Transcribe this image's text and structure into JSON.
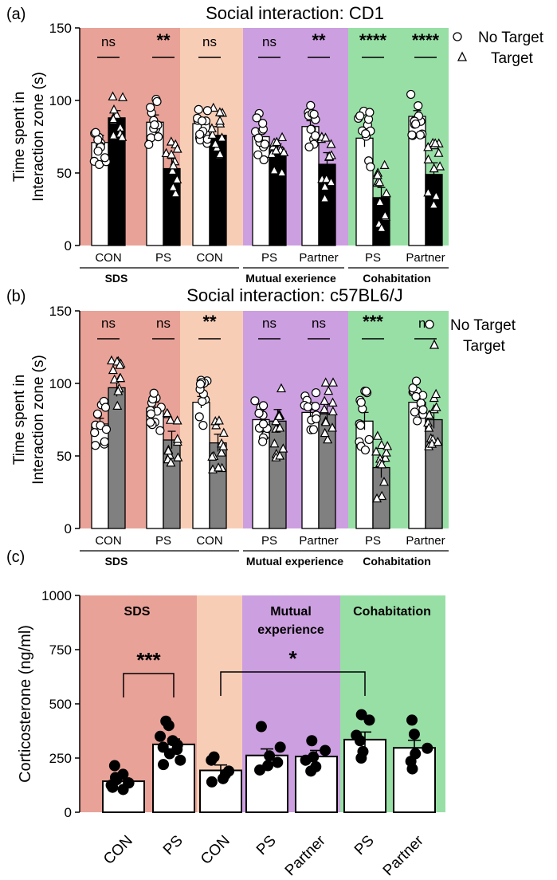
{
  "chart_data": [
    {
      "type": "bar",
      "panel": "(a)",
      "title": "Social interaction: CD1",
      "ylabel_line1": "Time spent in",
      "ylabel_line2": "Interaction zone (s)",
      "ylim": [
        0,
        150
      ],
      "yticks": [
        "0",
        "50",
        "100",
        "150"
      ],
      "legend": {
        "no_target": "No Target",
        "target": "Target"
      },
      "colors": {
        "sds": "#e9a298",
        "con": "#f8cdb6",
        "mutual": "#cc9fe0",
        "cohab": "#98dfa6",
        "target_bar": "#000000"
      },
      "groups": [
        {
          "label": "CON",
          "no_target": 71,
          "target": 88,
          "no_target_err": 5,
          "target_err": 5,
          "sig": "ns"
        },
        {
          "label": "PS",
          "no_target": 85,
          "target": 53,
          "no_target_err": 5,
          "target_err": 7,
          "sig": "**"
        },
        {
          "label": "CON",
          "no_target": 84,
          "target": 76,
          "no_target_err": 4,
          "target_err": 6,
          "sig": "ns"
        },
        {
          "label": "PS",
          "no_target": 75,
          "target": 65,
          "no_target_err": 4,
          "target_err": 5,
          "sig": "ns"
        },
        {
          "label": "Partner",
          "no_target": 82,
          "target": 56,
          "no_target_err": 4,
          "target_err": 8,
          "sig": "**"
        },
        {
          "label": "PS",
          "no_target": 74,
          "target": 33,
          "no_target_err": 6,
          "target_err": 7,
          "sig": "****"
        },
        {
          "label": "Partner",
          "no_target": 89,
          "target": 49,
          "no_target_err": 4,
          "target_err": 8,
          "sig": "****"
        }
      ],
      "section_labels": {
        "sds": "SDS",
        "mutual": "Mutual exerience",
        "cohab": "Cohabitation"
      }
    },
    {
      "type": "bar",
      "panel": "(b)",
      "title": "Social interaction: c57BL6/J",
      "ylabel_line1": "Time spent in",
      "ylabel_line2": "Interaction zone (s)",
      "ylim": [
        0,
        150
      ],
      "yticks": [
        "0",
        "50",
        "100",
        "150"
      ],
      "legend": {
        "no_target": "No Target",
        "target": "Target"
      },
      "colors": {
        "sds": "#e9a298",
        "con": "#f8cdb6",
        "mutual": "#cc9fe0",
        "cohab": "#98dfa6",
        "target_bar": "#808080"
      },
      "groups": [
        {
          "label": "CON",
          "no_target": 72,
          "target": 97,
          "no_target_err": 4,
          "target_err": 6,
          "sig": "ns"
        },
        {
          "label": "PS",
          "no_target": 83,
          "target": 61,
          "no_target_err": 4,
          "target_err": 6,
          "sig": "ns"
        },
        {
          "label": "CON",
          "no_target": 87,
          "target": 59,
          "no_target_err": 4,
          "target_err": 6,
          "sig": "**"
        },
        {
          "label": "PS",
          "no_target": 75,
          "target": 74,
          "no_target_err": 4,
          "target_err": 8,
          "sig": "ns"
        },
        {
          "label": "Partner",
          "no_target": 80,
          "target": 79,
          "no_target_err": 4,
          "target_err": 7,
          "sig": "ns"
        },
        {
          "label": "PS",
          "no_target": 74,
          "target": 42,
          "no_target_err": 6,
          "target_err": 7,
          "sig": "***"
        },
        {
          "label": "Partner",
          "no_target": 87,
          "target": 75,
          "no_target_err": 4,
          "target_err": 6,
          "sig": "ns"
        }
      ],
      "section_labels": {
        "sds": "SDS",
        "mutual": "Mutual experience",
        "cohab": "Cohabitation"
      }
    },
    {
      "type": "bar",
      "panel": "(c)",
      "title": "",
      "ylabel": "Corticosterone (ng/ml)",
      "ylim": [
        0,
        1000
      ],
      "yticks": [
        "0",
        "250",
        "500",
        "750",
        "1000"
      ],
      "colors": {
        "sds": "#e9a298",
        "con": "#f8cdb6",
        "mutual": "#cc9fe0",
        "cohab": "#98dfa6"
      },
      "section_labels": {
        "sds": "SDS",
        "mutual_line1": "Mutual",
        "mutual_line2": "experience",
        "cohab": "Cohabitation"
      },
      "categories": [
        "CON",
        "PS",
        "CON",
        "PS",
        "Partner",
        "PS",
        "Partner"
      ],
      "values": [
        143,
        313,
        193,
        262,
        257,
        335,
        297
      ],
      "errors": [
        15,
        25,
        25,
        30,
        28,
        35,
        35
      ],
      "points": [
        [
          215,
          175,
          160,
          150,
          135,
          125,
          115,
          105
        ],
        [
          420,
          400,
          350,
          330,
          310,
          300,
          290,
          270,
          240,
          220
        ],
        [
          255,
          240,
          190,
          175,
          155,
          140
        ],
        [
          395,
          300,
          260,
          230,
          215,
          195
        ],
        [
          330,
          285,
          255,
          240,
          210,
          190
        ],
        [
          450,
          425,
          355,
          330,
          280,
          250
        ],
        [
          425,
          360,
          295,
          270,
          235,
          200
        ]
      ],
      "comparisons": [
        {
          "from": 0,
          "to": 1,
          "sig": "***"
        },
        {
          "from": 2,
          "to": 5,
          "sig": "*"
        }
      ]
    }
  ]
}
